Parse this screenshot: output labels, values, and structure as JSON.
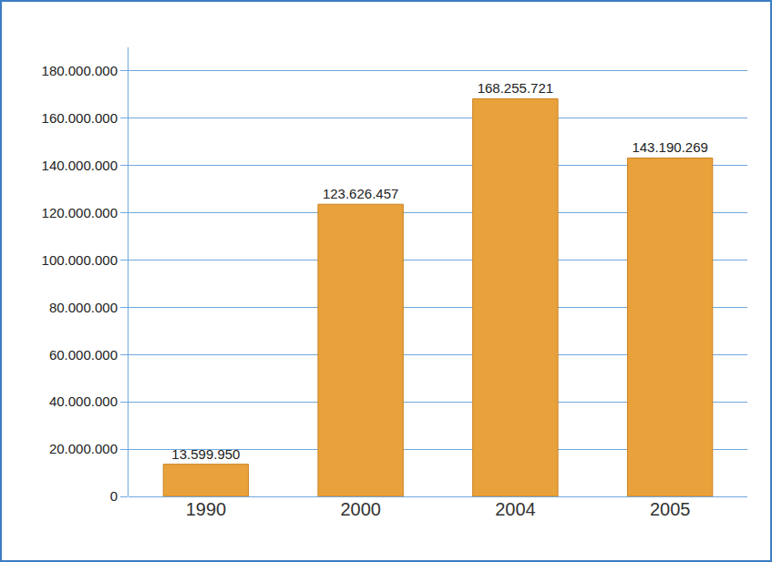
{
  "chart_data": {
    "type": "bar",
    "categories": [
      "1990",
      "2000",
      "2004",
      "2005"
    ],
    "values": [
      13599950,
      123626457,
      168255721,
      143190269
    ],
    "value_labels": [
      "13.599.950",
      "123.626.457",
      "168.255.721",
      "143.190.269"
    ],
    "data_labels": true,
    "color": "#e9a23b",
    "ylim": [
      0,
      190000000
    ],
    "yticks": [
      0,
      {
        "value": 20000000,
        "label": "20.000.000"
      },
      {
        "value": 40000000,
        "label": "40.000.000"
      },
      {
        "value": 60000000,
        "label": "60.000.000"
      },
      {
        "value": 80000000,
        "label": "80.000.000"
      },
      {
        "value": 100000000,
        "label": "100.000.000"
      },
      {
        "value": 120000000,
        "label": "120.000.000"
      },
      {
        "value": 140000000,
        "label": "140.000.000"
      },
      {
        "value": 160000000,
        "label": "160.000.000"
      },
      {
        "value": 180000000,
        "label": "180.000.000"
      }
    ],
    "grid": true
  }
}
